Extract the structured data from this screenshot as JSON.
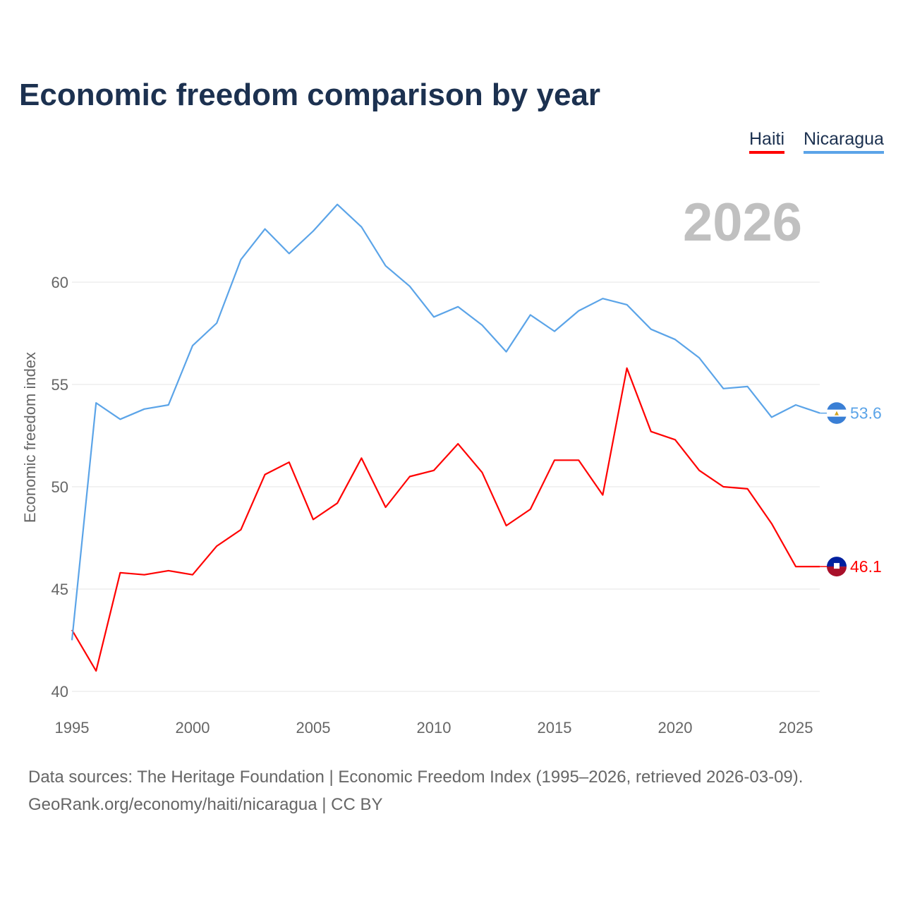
{
  "title": "Economic freedom comparison by year",
  "year_label": "2026",
  "footer": {
    "line1": "Data sources: The Heritage Foundation | Economic Freedom Index (1995–2026, retrieved 2026-03-09).",
    "line2": "GeoRank.org/economy/haiti/nicaragua | CC BY"
  },
  "chart_data": {
    "type": "line",
    "title": "Economic freedom comparison by year",
    "xlabel": "",
    "ylabel": "Economic freedom index",
    "xlim": [
      1995,
      2026
    ],
    "ylim": [
      40,
      65
    ],
    "xticks": [
      1995,
      2000,
      2005,
      2010,
      2015,
      2020,
      2025
    ],
    "yticks": [
      40,
      45,
      50,
      55,
      60
    ],
    "grid": true,
    "legend_position": "top-right",
    "x": [
      1995,
      1996,
      1997,
      1998,
      1999,
      2000,
      2001,
      2002,
      2003,
      2004,
      2005,
      2006,
      2007,
      2008,
      2009,
      2010,
      2011,
      2012,
      2013,
      2014,
      2015,
      2016,
      2017,
      2018,
      2019,
      2020,
      2021,
      2022,
      2023,
      2024,
      2025,
      2026
    ],
    "series": [
      {
        "name": "Haiti",
        "color": "#ff0000",
        "end_label": "46.1",
        "flag": "haiti-flag",
        "values": [
          43.0,
          41.0,
          45.8,
          45.7,
          45.9,
          45.7,
          47.1,
          47.9,
          50.6,
          51.2,
          48.4,
          49.2,
          51.4,
          49.0,
          50.5,
          50.8,
          52.1,
          50.7,
          48.1,
          48.9,
          51.3,
          51.3,
          49.6,
          55.8,
          52.7,
          52.3,
          50.8,
          50.0,
          49.9,
          48.2,
          46.1,
          46.1
        ]
      },
      {
        "name": "Nicaragua",
        "color": "#5ba4e8",
        "end_label": "53.6",
        "flag": "nicaragua-flag",
        "values": [
          42.5,
          54.1,
          53.3,
          53.8,
          54.0,
          56.9,
          58.0,
          61.1,
          62.6,
          61.4,
          62.5,
          63.8,
          62.7,
          60.8,
          59.8,
          58.3,
          58.8,
          57.9,
          56.6,
          58.4,
          57.6,
          58.6,
          59.2,
          58.9,
          57.7,
          57.2,
          56.3,
          54.8,
          54.9,
          53.4,
          54.0,
          53.6
        ]
      }
    ]
  }
}
